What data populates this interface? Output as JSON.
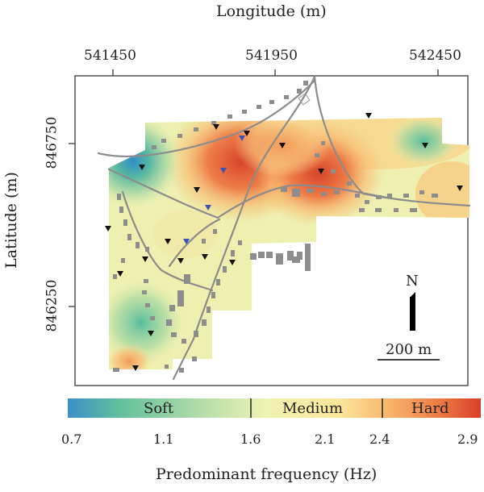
{
  "map": {
    "top_axis_title": "Longitude (m)",
    "left_axis_title": "Latitude (m)",
    "x_ticks": [
      "541450",
      "541950",
      "542450"
    ],
    "y_ticks": [
      "846750",
      "846250"
    ],
    "north_label": "N",
    "scale_bar_label": "200 m"
  },
  "legend": {
    "categories": [
      "Soft",
      "Medium",
      "Hard"
    ],
    "tick_labels": [
      "0.7",
      "1.1",
      "1.6",
      "2.1",
      "2.4",
      "2.9"
    ],
    "title": "Predominant frequency (Hz)",
    "colors": [
      "#3b8fc9",
      "#5fbf9d",
      "#a9d9a2",
      "#eef3b2",
      "#fbe59a",
      "#f7b56a",
      "#ee7a45",
      "#d9402a"
    ]
  }
}
